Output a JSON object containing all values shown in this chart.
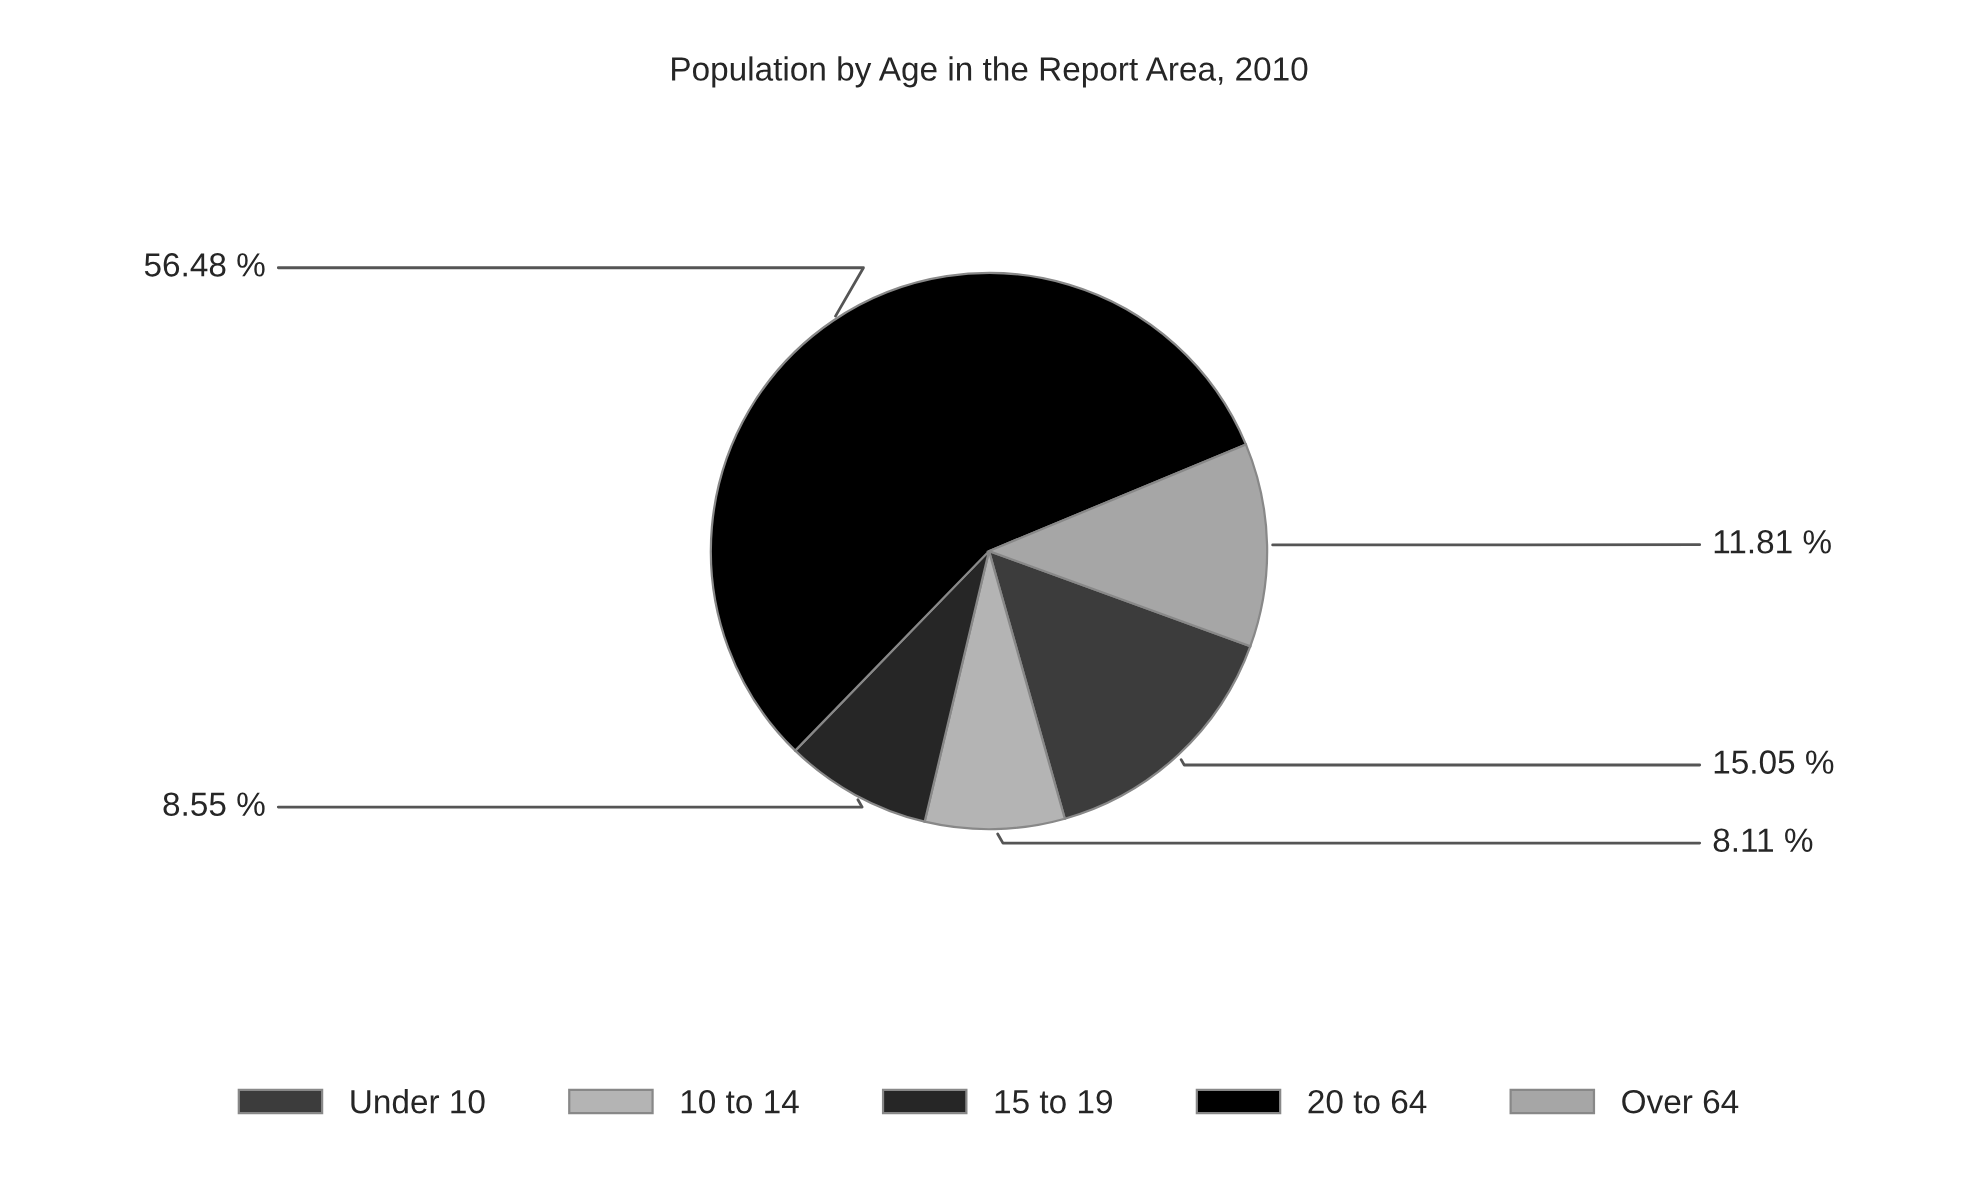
{
  "chart_data": {
    "type": "pie",
    "title": "Population by Age in the Report Area, 2010",
    "categories": [
      "Under 10",
      "10 to 14",
      "15 to 19",
      "20 to 64",
      "Over 64"
    ],
    "values": [
      15.05,
      8.11,
      8.55,
      56.48,
      11.81
    ],
    "colors": [
      "#3c3c3c",
      "#b4b4b4",
      "#262626",
      "#000000",
      "#a6a6a6"
    ],
    "value_labels": [
      "15.05 %",
      "8.11 %",
      "8.55 %",
      "56.48 %",
      "11.81 %"
    ],
    "legend": "bottom"
  }
}
